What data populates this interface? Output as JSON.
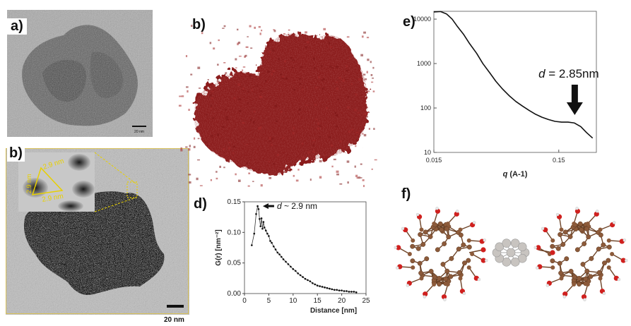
{
  "panels": {
    "a": {
      "label": "a)",
      "scale_bar": "20 nm"
    },
    "b_tomo": {
      "label": "b)",
      "scale_bar": "20 nm",
      "inset_annotations": [
        "2.9 nm",
        "2.9 nm",
        "2.9 nm"
      ]
    },
    "b_3d": {
      "label": "b)"
    },
    "d": {
      "label": "d)"
    },
    "e": {
      "label": "e)"
    },
    "f": {
      "label": "f)"
    }
  },
  "colors": {
    "tem_bg": "#a9a9a9",
    "particle_red": "#8b1a1a",
    "carbon_brown": "#8c5a3a",
    "oxygen_red": "#d0201e",
    "silver_gray": "#c8c4c0",
    "annotation_yellow": "#e8d000"
  },
  "chart_data": [
    {
      "id": "d",
      "type": "scatter",
      "xlabel": "Distance [nm]",
      "ylabel": "G(r) [nm⁻²]",
      "xlim": [
        0,
        25
      ],
      "ylim": [
        0,
        0.15
      ],
      "xticks": [
        0,
        5,
        10,
        15,
        20,
        25
      ],
      "yticks": [
        "0.00",
        "0.05",
        "0.10",
        "0.15"
      ],
      "annotation": {
        "prefix": "d",
        "text": " ~ 2.9 nm",
        "x": 2.9,
        "y": 0.143
      },
      "x": [
        1.5,
        2.0,
        2.4,
        2.7,
        2.9,
        3.1,
        3.3,
        3.5,
        3.7,
        3.9,
        4.1,
        4.4,
        4.7,
        5.0,
        5.3,
        5.6,
        6.0,
        6.4,
        6.8,
        7.2,
        7.6,
        8.0,
        8.5,
        9.0,
        9.5,
        10.0,
        10.5,
        11.0,
        11.5,
        12.0,
        12.5,
        13.0,
        13.5,
        14.0,
        14.5,
        15.0,
        15.5,
        16.0,
        16.5,
        17.0,
        17.5,
        18.0,
        18.5,
        19.0,
        19.5,
        20.0,
        20.5,
        21.0,
        21.5,
        22.0,
        22.5,
        23.0
      ],
      "y": [
        0.079,
        0.098,
        0.13,
        0.143,
        0.138,
        0.122,
        0.11,
        0.123,
        0.106,
        0.117,
        0.108,
        0.103,
        0.098,
        0.094,
        0.086,
        0.083,
        0.077,
        0.072,
        0.067,
        0.064,
        0.06,
        0.056,
        0.052,
        0.048,
        0.044,
        0.04,
        0.037,
        0.033,
        0.03,
        0.027,
        0.024,
        0.022,
        0.02,
        0.017,
        0.015,
        0.013,
        0.012,
        0.011,
        0.01,
        0.009,
        0.008,
        0.007,
        0.006,
        0.006,
        0.005,
        0.005,
        0.004,
        0.004,
        0.003,
        0.003,
        0.003,
        0.002
      ]
    },
    {
      "id": "e",
      "type": "line",
      "xlabel": "q (A-1)",
      "ylabel": "",
      "xscale": "log",
      "yscale": "log",
      "xlim": [
        0.015,
        0.3
      ],
      "ylim": [
        10,
        15000
      ],
      "xticks": [
        "0.015",
        "0.15"
      ],
      "yticks": [
        "10",
        "100",
        "1000",
        "10000"
      ],
      "annotation": {
        "prefix": "d",
        "text": " = 2.85nm",
        "x": 0.2,
        "y": 50
      },
      "x": [
        0.015,
        0.017,
        0.019,
        0.021,
        0.023,
        0.026,
        0.029,
        0.033,
        0.037,
        0.042,
        0.047,
        0.053,
        0.06,
        0.068,
        0.077,
        0.087,
        0.098,
        0.11,
        0.124,
        0.14,
        0.158,
        0.178,
        0.2,
        0.225,
        0.25,
        0.28
      ],
      "y": [
        14500,
        14800,
        13000,
        10000,
        7000,
        4500,
        2800,
        1700,
        1000,
        620,
        400,
        270,
        190,
        140,
        110,
        88,
        72,
        62,
        55,
        50,
        48,
        48,
        46,
        38,
        28,
        21
      ]
    }
  ]
}
